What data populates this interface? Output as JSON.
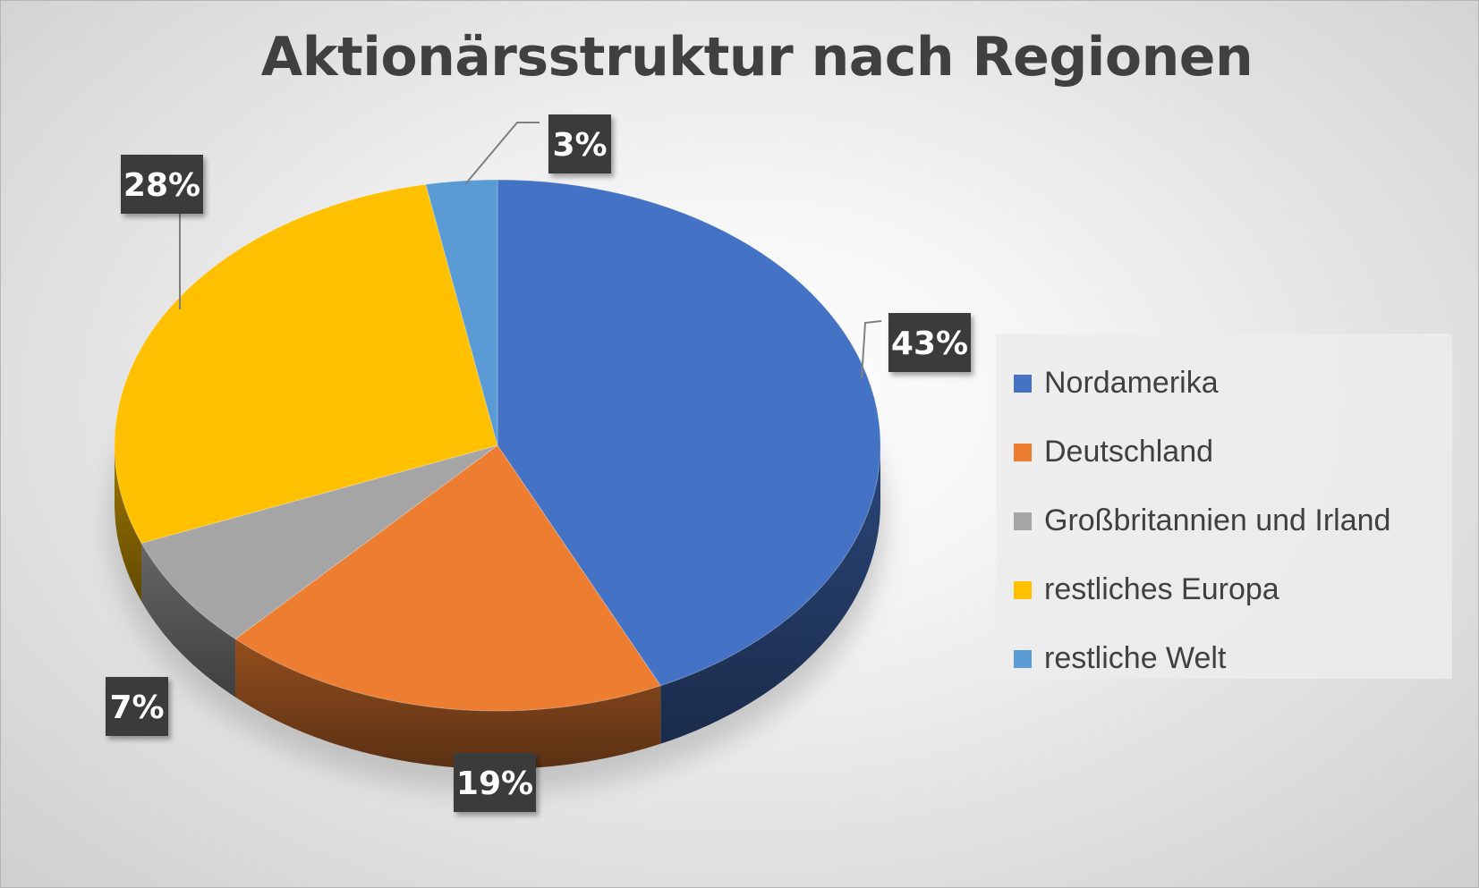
{
  "chart_data": {
    "type": "pie",
    "title": "Aktionärsstruktur nach Regionen",
    "categories": [
      "Nordamerika",
      "Deutschland",
      "Großbritannien und Irland",
      "restliches Europa",
      "restliche Welt"
    ],
    "values": [
      43,
      19,
      7,
      28,
      3
    ],
    "data_labels": [
      "43%",
      "19%",
      "7%",
      "28%",
      "3%"
    ],
    "unit": "%",
    "style": "3d",
    "legend_position": "right",
    "colors": [
      "#4472c4",
      "#ed7d31",
      "#a5a5a5",
      "#ffc000",
      "#5b9bd5"
    ]
  }
}
